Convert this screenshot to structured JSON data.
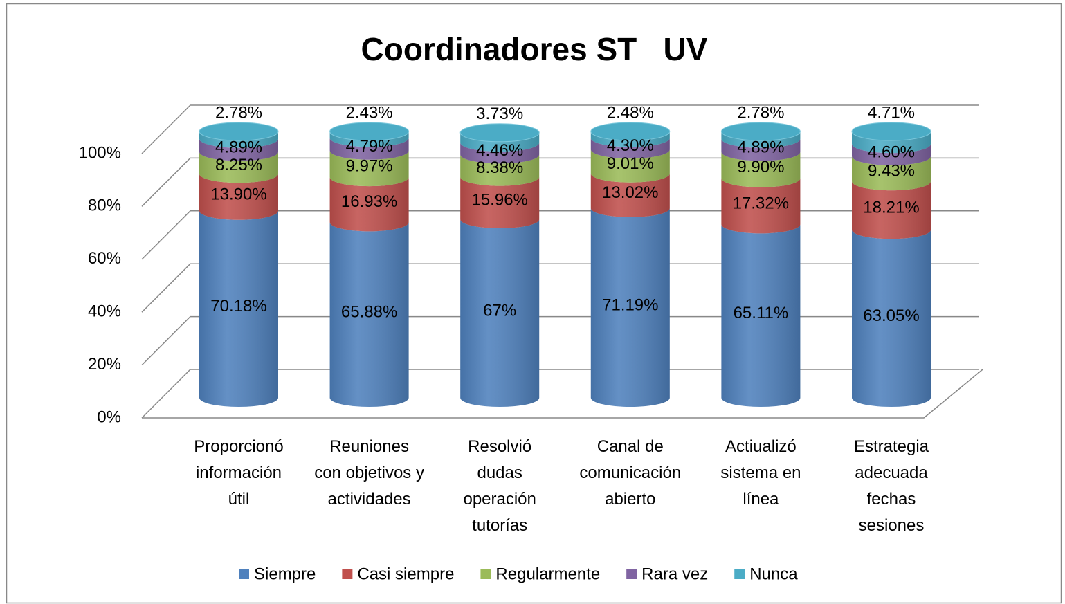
{
  "chart_data": {
    "type": "bar",
    "stacked": true,
    "title": "Coordinadores ST   UV",
    "categories": [
      "Proporcionó información útil",
      "Reuniones con objetivos  y actividades",
      "Resolvió dudas operación tutorías",
      "Canal de comunicación abierto",
      "Actiualizó sistema en línea",
      "Estrategia adecuada fechas sesiones"
    ],
    "series": [
      {
        "name": "Siempre",
        "color": "#4f81bd",
        "values": [
          70.18,
          65.88,
          67,
          71.19,
          65.11,
          63.05
        ],
        "value_labels": [
          "70.18%",
          "65.88%",
          "67%",
          "71.19%",
          "65.11%",
          "63.05%"
        ]
      },
      {
        "name": "Casi siempre",
        "color": "#c0504d",
        "values": [
          13.9,
          16.93,
          15.96,
          13.02,
          17.32,
          18.21
        ],
        "value_labels": [
          "13.90%",
          "16.93%",
          "15.96%",
          "13.02%",
          "17.32%",
          "18.21%"
        ]
      },
      {
        "name": "Regularmente",
        "color": "#9bbb59",
        "values": [
          8.25,
          9.97,
          8.38,
          9.01,
          9.9,
          9.43
        ],
        "value_labels": [
          "8.25%",
          "9.97%",
          "8.38%",
          "9.01%",
          "9.90%",
          "9.43%"
        ]
      },
      {
        "name": "Rara vez",
        "color": "#8064a2",
        "values": [
          4.89,
          4.79,
          4.46,
          4.3,
          4.89,
          4.6
        ],
        "value_labels": [
          "4.89%",
          "4.79%",
          "4.46%",
          "4.30%",
          "4.89%",
          "4.60%"
        ]
      },
      {
        "name": "Nunca",
        "color": "#4bacc6",
        "values": [
          2.78,
          2.43,
          3.73,
          2.48,
          2.78,
          4.71
        ],
        "value_labels": [
          "2.78%",
          "2.43%",
          "3.73%",
          "2.48%",
          "2.78%",
          "4.71%"
        ]
      }
    ],
    "ylim": [
      0,
      100
    ],
    "yticks": [
      {
        "value": 0,
        "label": "0%"
      },
      {
        "value": 20,
        "label": "20%"
      },
      {
        "value": 40,
        "label": "40%"
      },
      {
        "value": 60,
        "label": "60%"
      },
      {
        "value": 80,
        "label": "80%"
      },
      {
        "value": 100,
        "label": "100%"
      }
    ],
    "grid": true,
    "legend": "bottom"
  }
}
